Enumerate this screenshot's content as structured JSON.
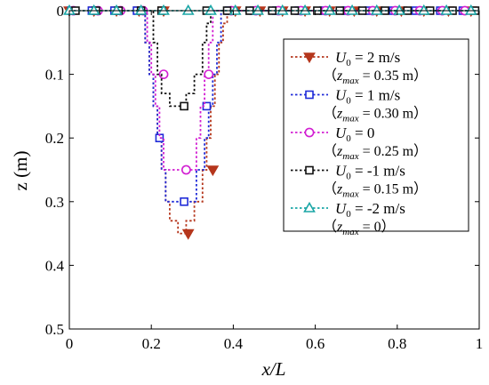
{
  "chart_data": {
    "type": "line",
    "xlabel": "x/L",
    "ylabel": "z (m)",
    "xlim": [
      0,
      1
    ],
    "ylim": [
      0.5,
      0
    ],
    "y_inverted": true,
    "x_ticks": [
      0,
      0.2,
      0.4,
      0.6,
      0.8,
      1
    ],
    "x_tick_labels": [
      "0",
      "0.2",
      "0.4",
      "0.6",
      "0.8",
      "1"
    ],
    "y_ticks": [
      0,
      0.1,
      0.2,
      0.3,
      0.4,
      0.5
    ],
    "y_tick_labels": [
      "0",
      "0.1",
      "0.2",
      "0.3",
      "0.4",
      "0.5"
    ],
    "grid": false,
    "legend_position": "top-right",
    "series": [
      {
        "name": "U0 = 2 m/s",
        "name_main": "U",
        "name_sub": "0",
        "name_rest": " = 2 m/s",
        "note_pre": "（z",
        "note_sub": "max",
        "note_post": " = 0.35 m）",
        "color": "#b5361c",
        "marker": "triangle-down",
        "x": [
          0,
          0.185,
          0.185,
          0.195,
          0.195,
          0.205,
          0.205,
          0.215,
          0.215,
          0.225,
          0.225,
          0.235,
          0.235,
          0.245,
          0.245,
          0.265,
          0.265,
          0.285,
          0.285,
          0.305,
          0.305,
          0.325,
          0.325,
          0.335,
          0.335,
          0.345,
          0.345,
          0.355,
          0.355,
          0.365,
          0.365,
          0.375,
          0.375,
          0.385,
          0.385,
          1
        ],
        "y": [
          0,
          0,
          0.05,
          0.05,
          0.1,
          0.1,
          0.15,
          0.15,
          0.2,
          0.2,
          0.25,
          0.25,
          0.3,
          0.3,
          0.33,
          0.33,
          0.35,
          0.35,
          0.33,
          0.33,
          0.3,
          0.3,
          0.25,
          0.25,
          0.2,
          0.2,
          0.15,
          0.15,
          0.1,
          0.1,
          0.05,
          0.05,
          0.02,
          0.02,
          0,
          0
        ],
        "marker_x": [
          0,
          0.06,
          0.115,
          0.17,
          0.23,
          0.29,
          0.35,
          0.405,
          0.465,
          0.52,
          0.575,
          0.635,
          0.695,
          0.75,
          0.81,
          0.865,
          0.925,
          0.98
        ],
        "marker_y": [
          0,
          0,
          0,
          0,
          0,
          0.35,
          0.25,
          0,
          0,
          0,
          0,
          0,
          0,
          0,
          0,
          0,
          0,
          0
        ]
      },
      {
        "name": "U0 = 1 m/s",
        "name_main": "U",
        "name_sub": "0",
        "name_rest": " = 1 m/s",
        "note_pre": "（z",
        "note_sub": "max",
        "note_post": " = 0.30 m）",
        "color": "#1f2bd8",
        "marker": "square",
        "x": [
          0,
          0.185,
          0.185,
          0.195,
          0.195,
          0.205,
          0.205,
          0.215,
          0.215,
          0.225,
          0.225,
          0.235,
          0.235,
          0.265,
          0.265,
          0.31,
          0.31,
          0.33,
          0.33,
          0.34,
          0.34,
          0.35,
          0.35,
          0.36,
          0.36,
          0.37,
          0.37,
          1
        ],
        "y": [
          0,
          0,
          0.05,
          0.05,
          0.1,
          0.1,
          0.15,
          0.15,
          0.2,
          0.2,
          0.25,
          0.25,
          0.3,
          0.3,
          0.3,
          0.3,
          0.25,
          0.25,
          0.2,
          0.2,
          0.15,
          0.15,
          0.1,
          0.1,
          0.05,
          0.05,
          0,
          0
        ],
        "marker_x": [
          0.005,
          0.055,
          0.11,
          0.165,
          0.22,
          0.28,
          0.335,
          0.39,
          0.45,
          0.505,
          0.56,
          0.62,
          0.675,
          0.73,
          0.79,
          0.845,
          0.905,
          0.96
        ],
        "marker_y": [
          0,
          0,
          0,
          0,
          0.2,
          0.3,
          0.15,
          0,
          0,
          0,
          0,
          0,
          0,
          0,
          0,
          0,
          0,
          0
        ]
      },
      {
        "name": "U0 = 0",
        "name_main": "U",
        "name_sub": "0",
        "name_rest": " = 0",
        "note_pre": "（z",
        "note_sub": "max",
        "note_post": " = 0.25 m）",
        "color": "#d21ed2",
        "marker": "circle",
        "x": [
          0,
          0.19,
          0.19,
          0.2,
          0.2,
          0.21,
          0.21,
          0.22,
          0.22,
          0.23,
          0.23,
          0.24,
          0.24,
          0.27,
          0.27,
          0.31,
          0.31,
          0.32,
          0.32,
          0.33,
          0.33,
          0.34,
          0.34,
          0.35,
          0.35,
          1
        ],
        "y": [
          0,
          0,
          0.05,
          0.05,
          0.1,
          0.1,
          0.15,
          0.15,
          0.2,
          0.2,
          0.25,
          0.25,
          0.25,
          0.25,
          0.25,
          0.25,
          0.2,
          0.2,
          0.15,
          0.15,
          0.1,
          0.1,
          0.05,
          0.05,
          0,
          0
        ],
        "marker_x": [
          0.01,
          0.07,
          0.125,
          0.18,
          0.23,
          0.285,
          0.34,
          0.395,
          0.455,
          0.51,
          0.565,
          0.625,
          0.68,
          0.74,
          0.795,
          0.855,
          0.91,
          0.965
        ],
        "marker_y": [
          0,
          0,
          0,
          0,
          0.1,
          0.25,
          0.1,
          0,
          0,
          0,
          0,
          0,
          0,
          0,
          0,
          0,
          0,
          0
        ]
      },
      {
        "name": "U0 = -1 m/s",
        "name_main": "U",
        "name_sub": "0",
        "name_rest": " = -1 m/s",
        "note_pre": "（z",
        "note_sub": "max",
        "note_post": " = 0.15 m）",
        "color": "#111111",
        "marker": "square",
        "x": [
          0,
          0.205,
          0.205,
          0.215,
          0.215,
          0.225,
          0.225,
          0.245,
          0.245,
          0.265,
          0.265,
          0.285,
          0.285,
          0.305,
          0.305,
          0.325,
          0.325,
          0.335,
          0.335,
          0.345,
          0.345,
          1
        ],
        "y": [
          0,
          0,
          0.05,
          0.05,
          0.1,
          0.1,
          0.13,
          0.13,
          0.15,
          0.15,
          0.15,
          0.15,
          0.13,
          0.13,
          0.1,
          0.1,
          0.05,
          0.05,
          0.02,
          0.02,
          0,
          0
        ],
        "marker_x": [
          0.015,
          0.065,
          0.12,
          0.175,
          0.225,
          0.28,
          0.335,
          0.385,
          0.44,
          0.495,
          0.55,
          0.605,
          0.66,
          0.715,
          0.77,
          0.825,
          0.88,
          0.935,
          0.99
        ],
        "marker_y": [
          0,
          0,
          0,
          0,
          0,
          0.15,
          0,
          0,
          0,
          0,
          0,
          0,
          0,
          0,
          0,
          0,
          0,
          0,
          0
        ]
      },
      {
        "name": "U0 = -2 m/s",
        "name_main": "U",
        "name_sub": "0",
        "name_rest": " = -2 m/s",
        "note_pre": "（z",
        "note_sub": "max",
        "note_post": " = 0）",
        "color": "#1aa6a6",
        "marker": "triangle-up",
        "x": [
          0,
          1
        ],
        "y": [
          0,
          0
        ],
        "marker_x": [
          0,
          0.06,
          0.115,
          0.175,
          0.23,
          0.29,
          0.345,
          0.405,
          0.46,
          0.52,
          0.575,
          0.635,
          0.69,
          0.75,
          0.805,
          0.865,
          0.92,
          0.98
        ],
        "marker_y": [
          0,
          0,
          0,
          0,
          0,
          0,
          0,
          0,
          0,
          0,
          0,
          0,
          0,
          0,
          0,
          0,
          0,
          0
        ]
      }
    ]
  }
}
